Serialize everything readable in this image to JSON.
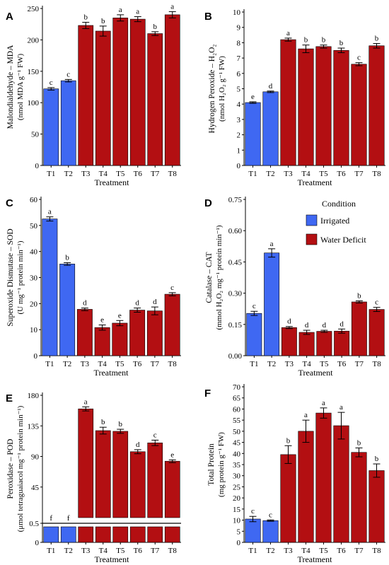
{
  "colors": {
    "irrigated": "#3f68f2",
    "water_deficit": "#b30f12",
    "axis": "#000000"
  },
  "legend": {
    "title": "Condition",
    "items": [
      {
        "label": "Irrigated",
        "color": "#3f68f2"
      },
      {
        "label": "Water Deficit",
        "color": "#b30f12"
      }
    ]
  },
  "chart_data": [
    {
      "panel": "A",
      "type": "bar",
      "ylabel_lines": [
        "Malondialdehyde – MDA",
        "(nmol MDA g⁻¹ FW)"
      ],
      "xlabel": "Treatment",
      "categories": [
        "T1",
        "T2",
        "T3",
        "T4",
        "T5",
        "T6",
        "T7",
        "T8"
      ],
      "values": [
        122,
        135,
        223,
        214,
        235,
        233,
        210,
        240
      ],
      "errors": [
        2,
        2,
        5,
        8,
        5,
        4,
        3,
        5
      ],
      "letters": [
        "c",
        "c",
        "b",
        "b",
        "a",
        "a",
        "b",
        "a"
      ],
      "conditions": [
        "Irrigated",
        "Irrigated",
        "Water Deficit",
        "Water Deficit",
        "Water Deficit",
        "Water Deficit",
        "Water Deficit",
        "Water Deficit"
      ],
      "ylim": [
        0,
        250
      ],
      "yticks": [
        0,
        50,
        100,
        150,
        200,
        250
      ]
    },
    {
      "panel": "B",
      "type": "bar",
      "ylabel_lines": [
        "Hydrogen Peroxide – H₂O₂",
        "(nmol H₂O₂ g⁻¹ FW)"
      ],
      "xlabel": "Treatment",
      "categories": [
        "T1",
        "T2",
        "T3",
        "T4",
        "T5",
        "T6",
        "T7",
        "T8"
      ],
      "values": [
        4.1,
        4.8,
        8.2,
        7.6,
        7.75,
        7.5,
        6.6,
        7.8
      ],
      "errors": [
        0.05,
        0.05,
        0.1,
        0.25,
        0.1,
        0.15,
        0.1,
        0.15
      ],
      "letters": [
        "e",
        "d",
        "a",
        "b",
        "b",
        "b",
        "c",
        "b"
      ],
      "conditions": [
        "Irrigated",
        "Irrigated",
        "Water Deficit",
        "Water Deficit",
        "Water Deficit",
        "Water Deficit",
        "Water Deficit",
        "Water Deficit"
      ],
      "ylim": [
        0,
        10
      ],
      "yticks": [
        0,
        1,
        2,
        3,
        4,
        5,
        6,
        7,
        8,
        9,
        10
      ]
    },
    {
      "panel": "C",
      "type": "bar",
      "ylabel_lines": [
        "Superoxide Dismutase – SOD",
        "(U mg⁻¹ protein min⁻¹)"
      ],
      "xlabel": "Treatment",
      "categories": [
        "T1",
        "T2",
        "T3",
        "T4",
        "T5",
        "T6",
        "T7",
        "T8"
      ],
      "values": [
        52.5,
        35.2,
        17.8,
        10.8,
        12.5,
        17.5,
        17.2,
        23.6
      ],
      "errors": [
        0.8,
        0.5,
        0.5,
        1.0,
        1.0,
        0.8,
        1.5,
        0.6
      ],
      "letters": [
        "a",
        "b",
        "d",
        "e",
        "e",
        "d",
        "d",
        "c"
      ],
      "conditions": [
        "Irrigated",
        "Irrigated",
        "Water Deficit",
        "Water Deficit",
        "Water Deficit",
        "Water Deficit",
        "Water Deficit",
        "Water Deficit"
      ],
      "ylim": [
        0,
        60
      ],
      "yticks": [
        0,
        10,
        20,
        30,
        40,
        50,
        60
      ]
    },
    {
      "panel": "D",
      "type": "bar",
      "ylabel_lines": [
        "Catalase – CAT",
        "(mmol H₂O₂ mg⁻¹ protein min⁻¹)"
      ],
      "xlabel": "Treatment",
      "categories": [
        "T1",
        "T2",
        "T3",
        "T4",
        "T5",
        "T6",
        "T7",
        "T8"
      ],
      "values": [
        0.203,
        0.493,
        0.135,
        0.112,
        0.117,
        0.118,
        0.258,
        0.222
      ],
      "errors": [
        0.01,
        0.02,
        0.005,
        0.01,
        0.005,
        0.01,
        0.005,
        0.01
      ],
      "letters": [
        "c",
        "a",
        "d",
        "d",
        "d",
        "d",
        "b",
        "c"
      ],
      "conditions": [
        "Irrigated",
        "Irrigated",
        "Water Deficit",
        "Water Deficit",
        "Water Deficit",
        "Water Deficit",
        "Water Deficit",
        "Water Deficit"
      ],
      "ylim": [
        0,
        0.75
      ],
      "yticks": [
        0.0,
        0.15,
        0.3,
        0.45,
        0.6,
        0.75
      ],
      "ytick_labels": [
        "0.00",
        "0.15",
        "0.30",
        "0.45",
        "0.60",
        "0.75"
      ]
    },
    {
      "panel": "E",
      "type": "bar",
      "ylabel_lines": [
        "Peroxidase – POD",
        "(μmol tetraguaiacol mg⁻¹ protein min⁻¹)"
      ],
      "xlabel": "Treatment",
      "categories": [
        "T1",
        "T2",
        "T3",
        "T4",
        "T5",
        "T6",
        "T7",
        "T8"
      ],
      "values": [
        0.5,
        0.5,
        160,
        128,
        127,
        97,
        110,
        83
      ],
      "errors": [
        0,
        0,
        3,
        5,
        3,
        3,
        4,
        2
      ],
      "letters": [
        "f",
        "f",
        "a",
        "b",
        "b",
        "d",
        "c",
        "e"
      ],
      "conditions": [
        "Irrigated",
        "Irrigated",
        "Water Deficit",
        "Water Deficit",
        "Water Deficit",
        "Water Deficit",
        "Water Deficit",
        "Water Deficit"
      ],
      "ylim": [
        0,
        180
      ],
      "broken_axis": true,
      "yticks": [
        0,
        0.5,
        45,
        90,
        135,
        180
      ]
    },
    {
      "panel": "F",
      "type": "bar",
      "ylabel_lines": [
        "Total Protein",
        "(mg protein g⁻¹ FW)"
      ],
      "xlabel": "Treatment",
      "categories": [
        "T1",
        "T2",
        "T3",
        "T4",
        "T5",
        "T6",
        "T7",
        "T8"
      ],
      "values": [
        10.5,
        9.8,
        39.5,
        50.0,
        58.2,
        52.5,
        40.5,
        32.3
      ],
      "errors": [
        1.2,
        0.3,
        4.0,
        5.0,
        2.3,
        6.0,
        2.0,
        3.0
      ],
      "letters": [
        "c",
        "c",
        "b",
        "a",
        "a",
        "a",
        "b",
        "b"
      ],
      "conditions": [
        "Irrigated",
        "Irrigated",
        "Water Deficit",
        "Water Deficit",
        "Water Deficit",
        "Water Deficit",
        "Water Deficit",
        "Water Deficit"
      ],
      "ylim": [
        0,
        70
      ],
      "yticks": [
        0,
        5,
        10,
        15,
        20,
        25,
        30,
        35,
        40,
        45,
        50,
        55,
        60,
        65,
        70
      ]
    }
  ]
}
